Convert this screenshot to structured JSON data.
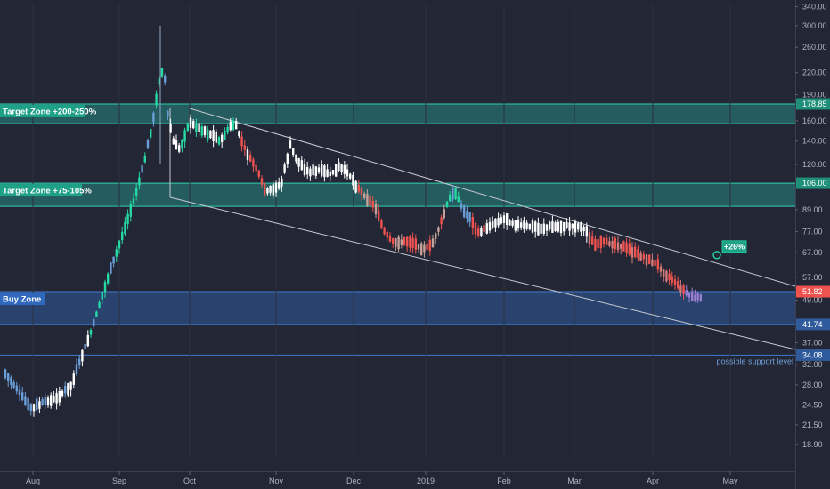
{
  "chart_data": {
    "type": "candlestick",
    "y_scale": "log",
    "ylim": [
      17.5,
      345
    ],
    "y_ticks": [
      "340.00",
      "300.00",
      "260.00",
      "220.00",
      "190.00",
      "160.00",
      "140.00",
      "120.00",
      "89.00",
      "77.00",
      "67.00",
      "57.00",
      "49.00",
      "37.00",
      "32.00",
      "28.00",
      "24.50",
      "21.50",
      "18.90"
    ],
    "x_ticks": [
      "Aug",
      "Sep",
      "Oct",
      "Nov",
      "Dec",
      "2019",
      "Feb",
      "Mar",
      "Apr",
      "May"
    ],
    "colors": {
      "background": "#232635",
      "up_early": "#ffffff",
      "up_peak": "#26d9a4",
      "down_blue": "#6a9ed8",
      "down_red": "#ef5350",
      "teal_zone": "#26a69a",
      "blue_zone": "#2f5b9c",
      "channel": "#c8cad3"
    },
    "zones": [
      {
        "label": "Target Zone +200-250%",
        "y_low": 157,
        "y_high": 178.85,
        "price_tag": "178.85",
        "color": "#26a69a"
      },
      {
        "label": "Target Zone +75-105%",
        "y_low": 91,
        "y_high": 106,
        "price_tag": "106.00",
        "color": "#26a69a"
      },
      {
        "label": "Buy Zone",
        "y_low": 41.74,
        "y_high": 51.82,
        "price_tag": "41.74",
        "color": "#2f5b9c"
      }
    ],
    "support_level": {
      "value": 34.08,
      "price_tag": "34.08",
      "label": "possible support level"
    },
    "current_price": {
      "value": 51.82,
      "price_tag": "51.82",
      "color": "#ef5350"
    },
    "target_marker": {
      "label": "+26%",
      "value": 66
    }
  }
}
